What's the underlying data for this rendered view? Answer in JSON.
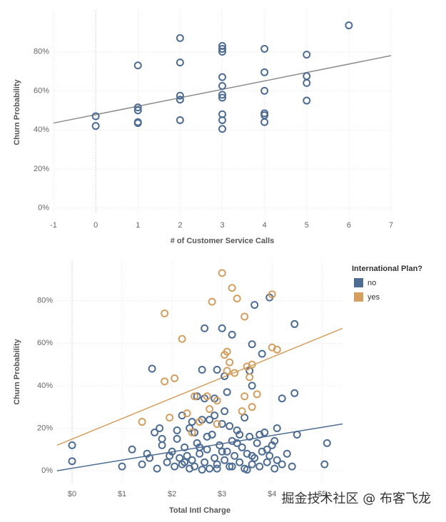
{
  "chart_data": [
    {
      "type": "scatter",
      "y_label": "Churn Probability",
      "x_label": "# of Customer Service Calls",
      "color": "#4e6d94",
      "x": [
        0,
        0,
        1,
        1,
        1,
        1,
        1,
        2,
        2,
        2,
        2,
        2,
        3,
        3,
        3,
        3,
        3,
        3,
        3,
        3,
        3,
        3,
        4,
        4,
        4,
        4,
        4,
        4,
        5,
        5,
        5,
        5,
        6
      ],
      "values": [
        47,
        42,
        73,
        51.5,
        50,
        44,
        43.5,
        87,
        74.5,
        57.5,
        55.5,
        45,
        83,
        81.5,
        80,
        67,
        62.5,
        58,
        56.5,
        48,
        45,
        40.5,
        81.5,
        69.5,
        60,
        48.5,
        47.5,
        44,
        78.5,
        67.5,
        64,
        55,
        93.5
      ],
      "trendline": {
        "color": "#8c8c8c",
        "x": [
          -1,
          7
        ],
        "values": [
          43.5,
          78
        ]
      },
      "xlim": [
        -1,
        7
      ],
      "xticks": [
        -1,
        0,
        1,
        2,
        3,
        4,
        5,
        6,
        7
      ],
      "ylim": [
        -3,
        101
      ],
      "yticks": [
        {
          "value": 0,
          "label": "0%"
        },
        {
          "value": 20,
          "label": "20%"
        },
        {
          "value": 40,
          "label": "40%"
        },
        {
          "value": 60,
          "label": "60%"
        },
        {
          "value": 80,
          "label": "80%"
        }
      ],
      "grid": true
    },
    {
      "type": "scatter",
      "y_label": "Churn Probability",
      "x_label": "Total Intl Charge",
      "legend_title": "International Plan?",
      "legend": "right",
      "series": [
        {
          "name": "no",
          "color": "#4e6d94",
          "x": [
            0,
            0,
            1.6,
            2.65,
            3.0,
            3.2,
            3.65,
            3.95,
            4.45,
            3.6,
            3.8,
            3.55,
            2.6,
            2.9,
            3.05,
            3.6,
            2.2,
            2.5,
            2.65,
            2.85,
            3.1,
            4.2,
            4.45,
            5.1,
            5.05,
            4.1,
            4.5,
            1.2,
            1.0,
            1.5,
            1.65,
            1.4,
            1.55,
            1.7,
            1.8,
            1.9,
            2.0,
            2.05,
            2.1,
            2.15,
            2.2,
            2.25,
            2.3,
            2.35,
            2.4,
            2.45,
            2.5,
            2.55,
            2.6,
            2.65,
            2.7,
            2.75,
            2.8,
            2.85,
            2.9,
            2.95,
            3.0,
            3.05,
            3.1,
            3.15,
            3.2,
            3.25,
            3.3,
            3.35,
            3.4,
            3.45,
            3.5,
            3.55,
            3.6,
            3.65,
            3.7,
            3.75,
            3.8,
            3.85,
            3.9,
            3.95,
            4.0,
            4.05,
            4.1,
            4.2,
            4.3,
            4.4,
            1.8,
            1.95,
            2.1,
            2.25,
            2.4,
            2.55,
            2.7,
            2.85,
            3.0,
            3.15,
            3.3,
            3.45,
            3.6,
            3.75,
            3.9,
            4.05,
            2.35,
            2.6,
            2.9,
            3.2,
            3.5,
            2.45,
            2.75,
            3.05,
            3.35,
            1.75
          ],
          "values": [
            12,
            4.5,
            48,
            67,
            67,
            64,
            78,
            81.5,
            69,
            59.5,
            55,
            47,
            47.5,
            47.5,
            44.5,
            40,
            26,
            35,
            34,
            34,
            37,
            34,
            36.5,
            13,
            3,
            20,
            17,
            10,
            2,
            8,
            18,
            3,
            6,
            1,
            12,
            4,
            9,
            2,
            15,
            6,
            3,
            11,
            7,
            20,
            5,
            2,
            13,
            8,
            24,
            4,
            10,
            1,
            17,
            6,
            3,
            12,
            22,
            5,
            9,
            2,
            14,
            7,
            19,
            4,
            11,
            1,
            8,
            16,
            3,
            6,
            13,
            2,
            9,
            18,
            4,
            7,
            12,
            1,
            5,
            3,
            8,
            2,
            15,
            7,
            19,
            4,
            23,
            11,
            16,
            26,
            9,
            21,
            13,
            25,
            7,
            17,
            10,
            14,
            1,
            0.5,
            1,
            2,
            0.5,
            18,
            24,
            28,
            17,
            20
          ],
          "trendline": {
            "x": [
              -0.3,
              5.41
            ],
            "values": [
              0,
              22
            ]
          }
        },
        {
          "name": "yes",
          "color": "#d69f5e",
          "x": [
            1.85,
            2.2,
            2.05,
            1.85,
            2.8,
            3.0,
            3.2,
            3.3,
            3.45,
            3.1,
            3.05,
            3.15,
            3.25,
            3.5,
            3.55,
            3.6,
            3.7,
            4.0,
            4.1,
            2.45,
            2.7,
            1.4,
            1.95,
            2.3,
            2.9,
            3.1,
            3.45,
            2.55,
            3.4,
            2.4,
            3.6,
            4.0,
            2.75,
            2.9
          ],
          "values": [
            74,
            62,
            43.5,
            42,
            79.5,
            93,
            86,
            81,
            72.5,
            56,
            54.5,
            51,
            46,
            49,
            44,
            50,
            36,
            58,
            57,
            35,
            35,
            23,
            25,
            27,
            33,
            47,
            35,
            23,
            28,
            18,
            30,
            83,
            29,
            22
          ],
          "trendline": {
            "x": [
              -0.3,
              5.41
            ],
            "values": [
              12,
              67
            ]
          }
        }
      ],
      "xlim": [
        -0.3,
        5.41
      ],
      "xticks": [
        {
          "value": 0,
          "label": "$0"
        },
        {
          "value": 1,
          "label": "$1"
        },
        {
          "value": 2,
          "label": "$2"
        },
        {
          "value": 3,
          "label": "$3"
        },
        {
          "value": 4,
          "label": "$4"
        },
        {
          "value": 5,
          "label": "$5"
        }
      ],
      "ylim": [
        -6,
        99
      ],
      "yticks": [
        {
          "value": 0,
          "label": "0%"
        },
        {
          "value": 20,
          "label": "20%"
        },
        {
          "value": 40,
          "label": "40%"
        },
        {
          "value": 60,
          "label": "60%"
        },
        {
          "value": 80,
          "label": "80%"
        }
      ],
      "grid": true
    }
  ],
  "watermark": "掘金技术社区 @ 布客飞龙"
}
